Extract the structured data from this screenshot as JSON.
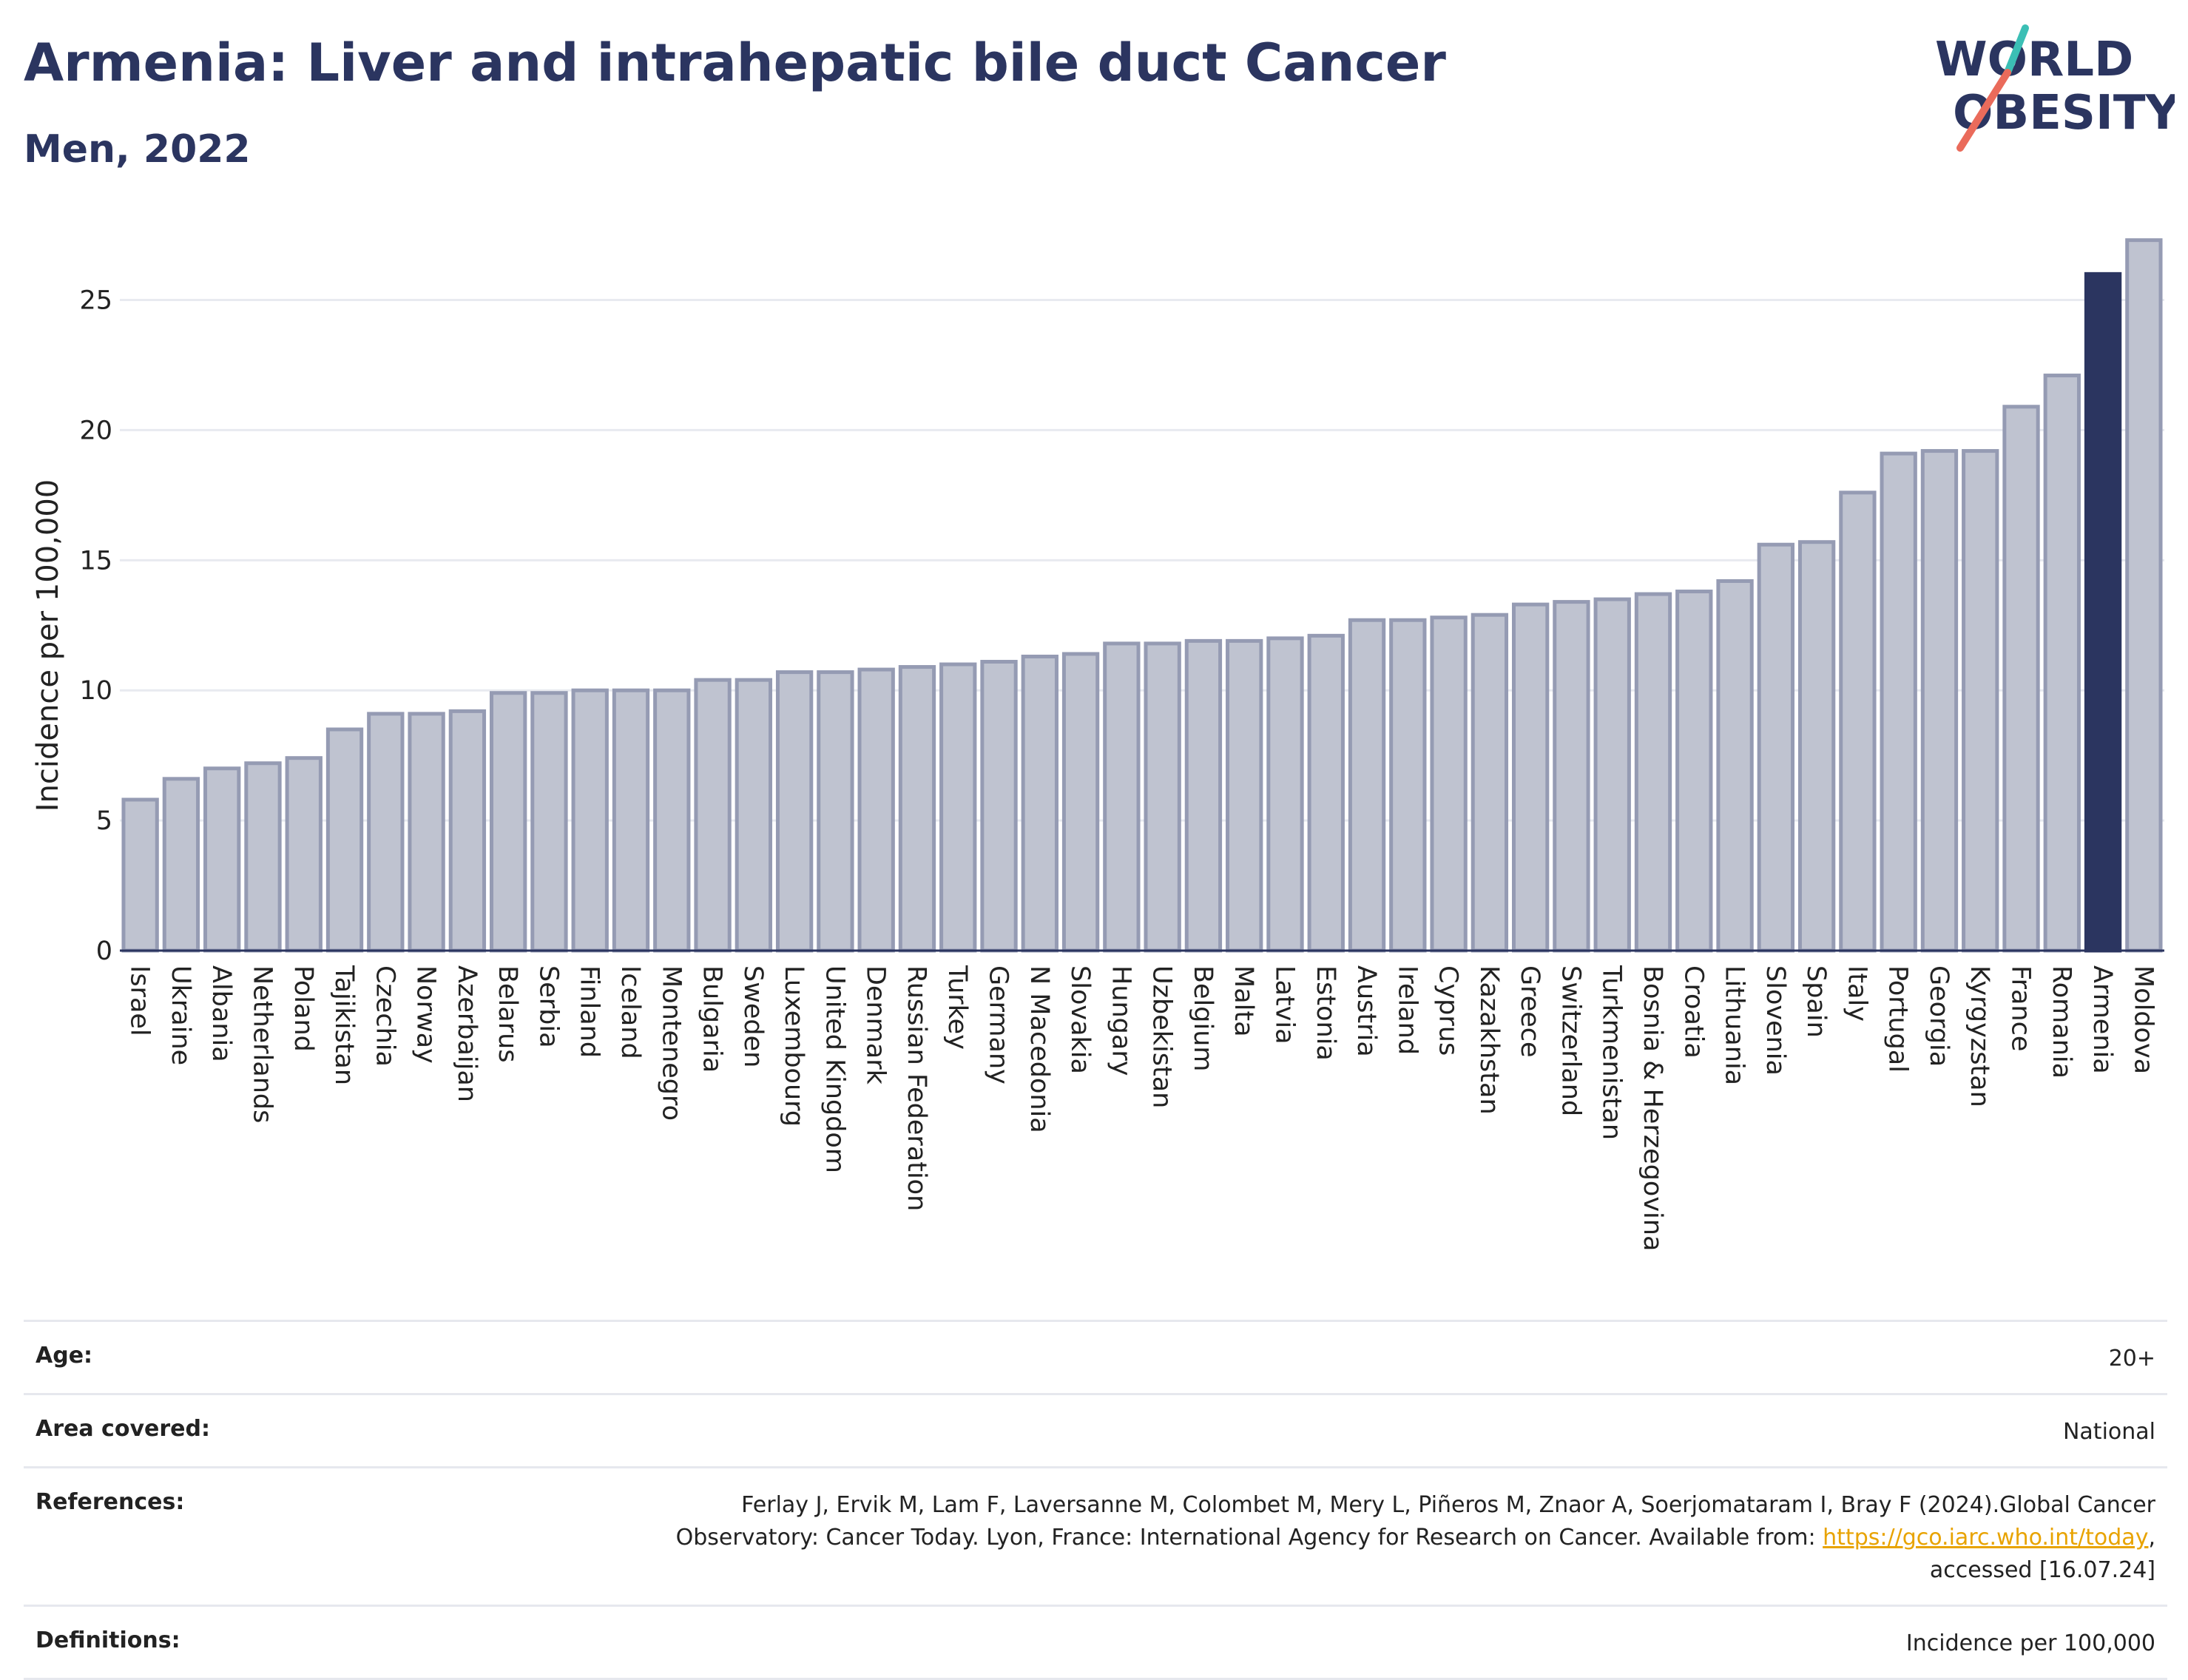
{
  "header": {
    "title": "Armenia: Liver and intrahepatic bile duct Cancer",
    "subtitle": "Men, 2022"
  },
  "logo": {
    "line1": "WORLD",
    "line2": "OBESITY",
    "accent_teal": "#3bbfb5",
    "accent_red": "#ea6b5b",
    "text_color": "#2b3560"
  },
  "chart_data": {
    "type": "bar",
    "title": "Armenia: Liver and intrahepatic bile duct Cancer",
    "subtitle": "Men, 2022",
    "xlabel": "",
    "ylabel": "Incidence per 100,000",
    "ylim": [
      0,
      28
    ],
    "yticks": [
      0,
      5,
      10,
      15,
      20,
      25
    ],
    "grid": true,
    "highlight": "Armenia",
    "colors": {
      "bar": "#bfc3d0",
      "bar_edge": "#959bb3",
      "highlight": "#2b3560"
    },
    "categories": [
      "Israel",
      "Ukraine",
      "Albania",
      "Netherlands",
      "Poland",
      "Tajikistan",
      "Czechia",
      "Norway",
      "Azerbaijan",
      "Belarus",
      "Serbia",
      "Finland",
      "Iceland",
      "Montenegro",
      "Bulgaria",
      "Sweden",
      "Luxembourg",
      "United Kingdom",
      "Denmark",
      "Russian Federation",
      "Turkey",
      "Germany",
      "N Macedonia",
      "Slovakia",
      "Hungary",
      "Uzbekistan",
      "Belgium",
      "Malta",
      "Latvia",
      "Estonia",
      "Austria",
      "Ireland",
      "Cyprus",
      "Kazakhstan",
      "Greece",
      "Switzerland",
      "Turkmenistan",
      "Bosnia & Herzegovina",
      "Croatia",
      "Lithuania",
      "Slovenia",
      "Spain",
      "Italy",
      "Portugal",
      "Georgia",
      "Kyrgyzstan",
      "France",
      "Romania",
      "Armenia",
      "Moldova"
    ],
    "values": [
      5.8,
      6.6,
      7.0,
      7.2,
      7.4,
      8.5,
      9.1,
      9.1,
      9.2,
      9.9,
      9.9,
      10.0,
      10.0,
      10.0,
      10.4,
      10.4,
      10.7,
      10.7,
      10.8,
      10.9,
      11.0,
      11.1,
      11.3,
      11.4,
      11.8,
      11.8,
      11.9,
      11.9,
      12.0,
      12.1,
      12.7,
      12.7,
      12.8,
      12.9,
      13.3,
      13.4,
      13.5,
      13.7,
      13.8,
      14.2,
      15.6,
      15.7,
      17.6,
      19.1,
      19.2,
      19.2,
      20.9,
      22.1,
      26.0,
      27.3
    ]
  },
  "meta": {
    "age_label": "Age:",
    "age_value": "20+",
    "area_label": "Area covered:",
    "area_value": "National",
    "references_label": "References:",
    "references_line1": "Ferlay J, Ervik M, Lam F, Laversanne M, Colombet M, Mery L, Piñeros M, Znaor A, Soerjomataram I, Bray F (2024).Global Cancer",
    "references_line2_pre": "Observatory: Cancer Today. Lyon, France: International Agency for Research on Cancer. Available from: ",
    "references_link": "https://gco.iarc.who.int/today",
    "references_line2_post": ",",
    "references_line3": "accessed [16.07.24]",
    "definitions_label": "Definitions:",
    "definitions_value": "Incidence per 100,000"
  }
}
